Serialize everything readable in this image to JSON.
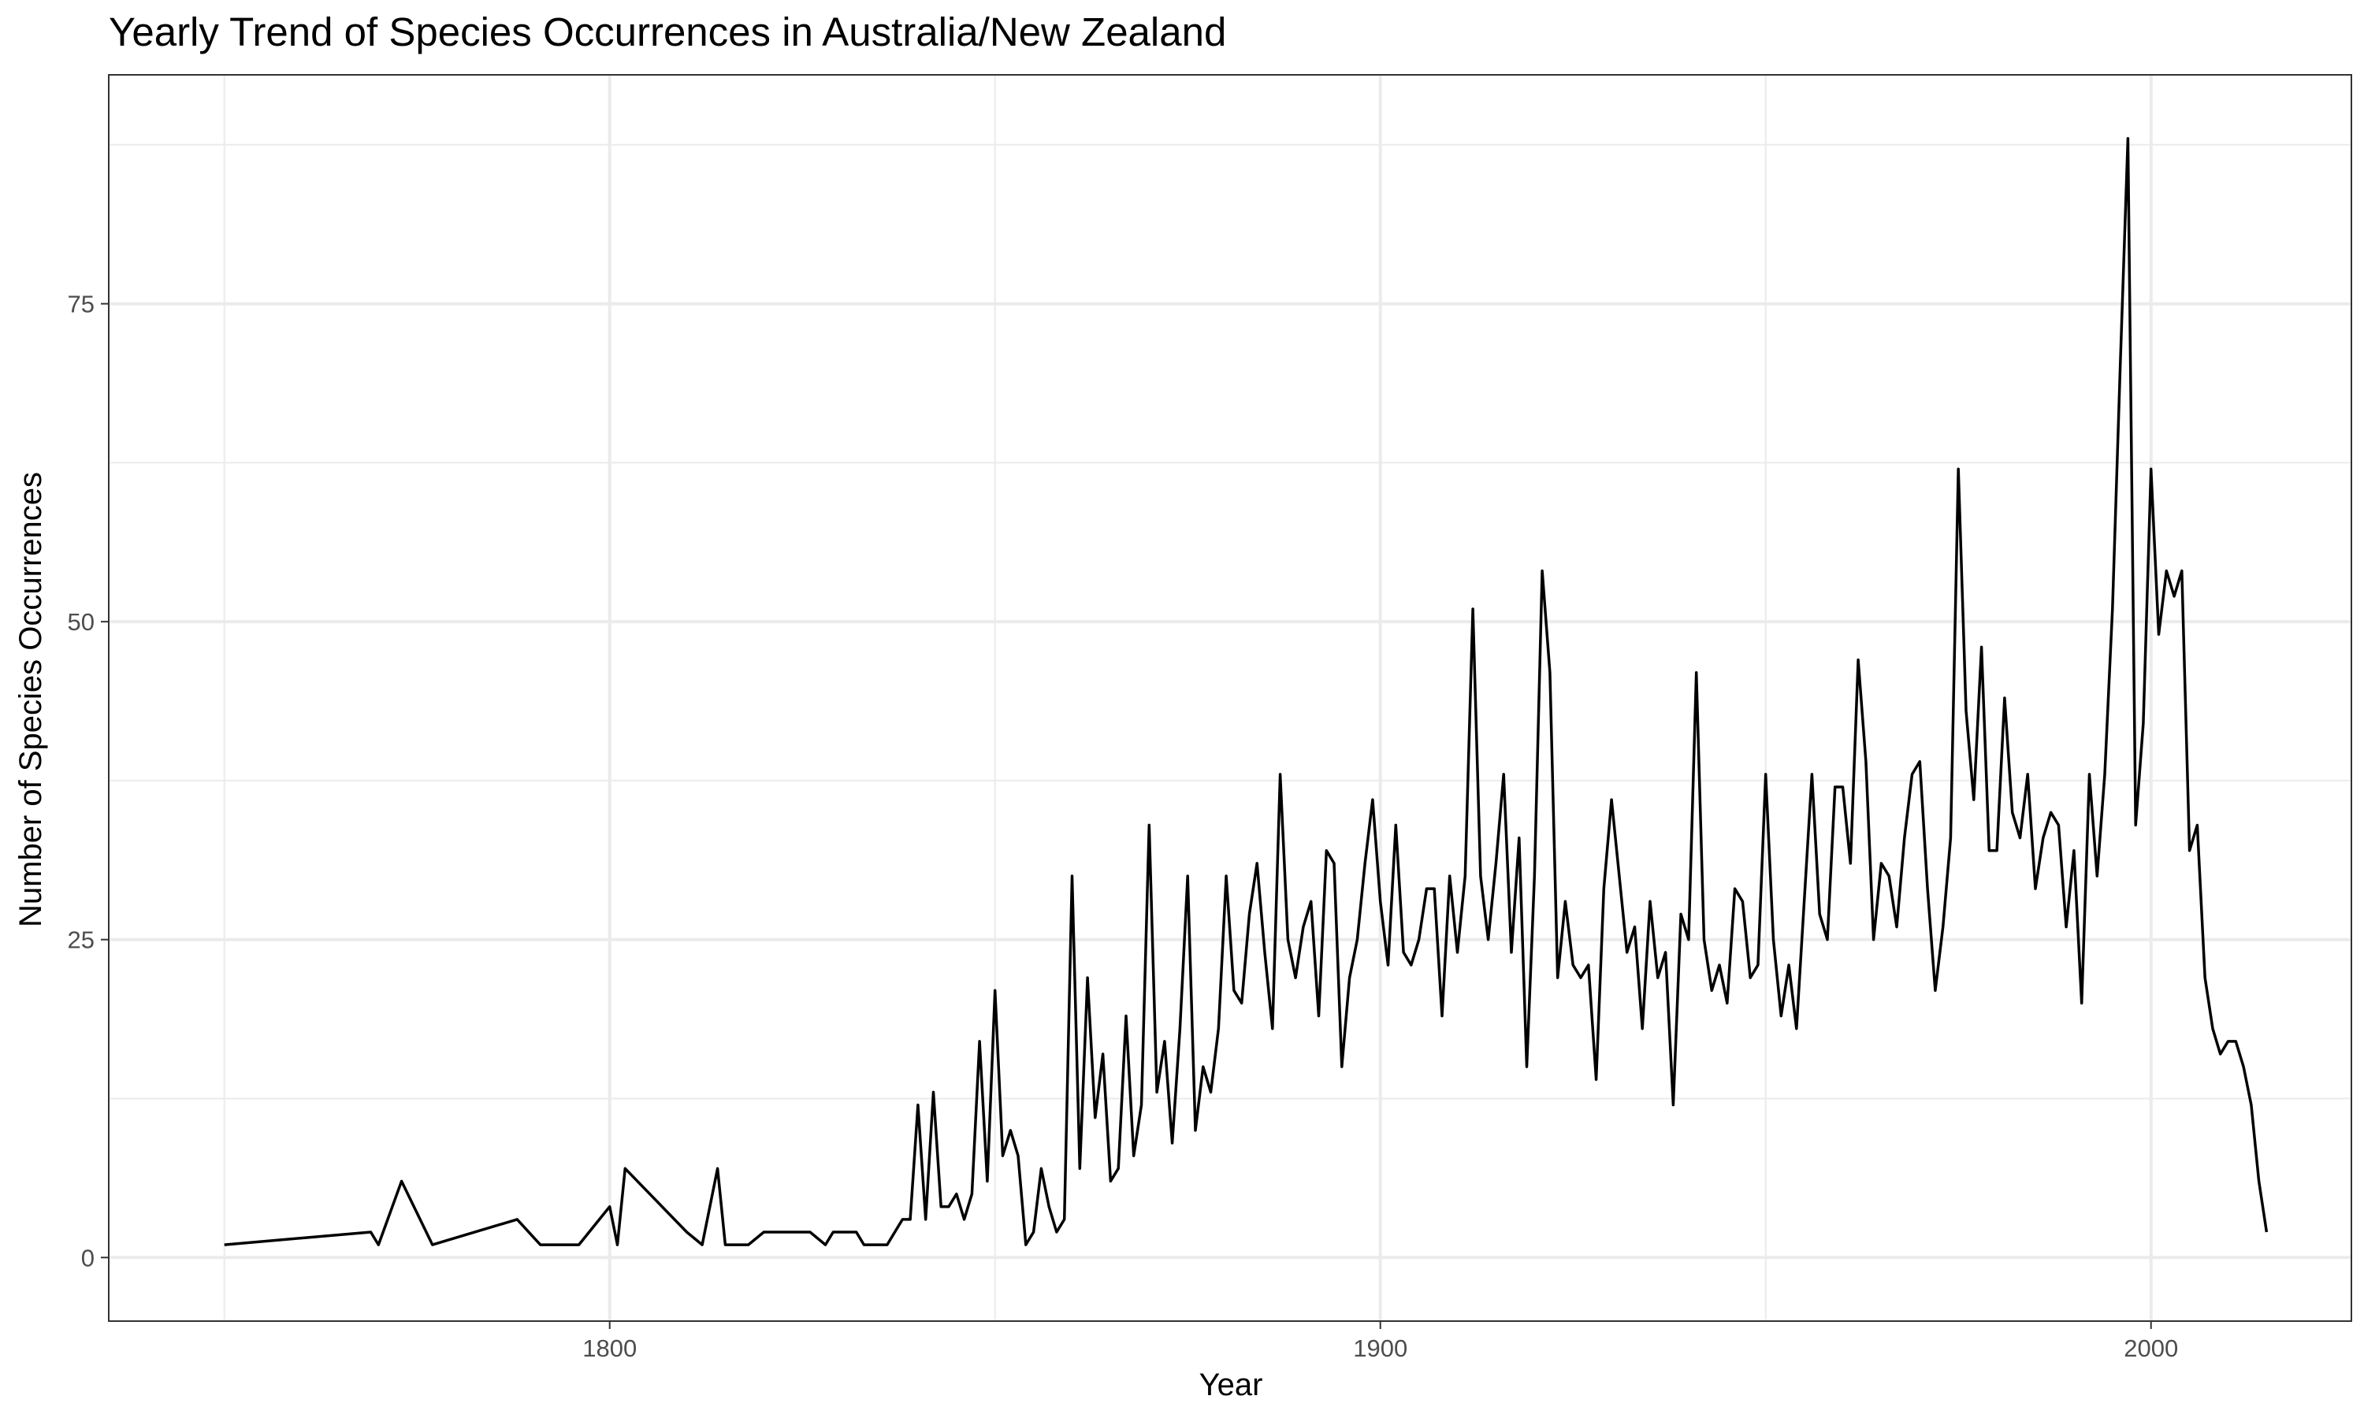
{
  "chart_data": {
    "type": "line",
    "title": "Yearly Trend of Species Occurrences in Australia/New Zealand",
    "xlabel": "Year",
    "ylabel": "Number of Species Occurrences",
    "xlim": [
      1735,
      2026
    ],
    "ylim": [
      -5,
      93
    ],
    "x_ticks": [
      1800,
      1900,
      2000
    ],
    "x_tick_labels": [
      "1800",
      "1900",
      "2000"
    ],
    "x_minor_ticks": [
      1750,
      1850,
      1950
    ],
    "y_ticks": [
      0,
      25,
      50,
      75
    ],
    "y_tick_labels": [
      "0",
      "25",
      "50",
      "75"
    ],
    "y_minor_ticks": [
      12.5,
      37.5,
      62.5,
      87.5
    ],
    "grid": true,
    "legend": "none",
    "colors": {
      "line": "#000000",
      "grid": "#ebebeb",
      "panel_border": "#333333",
      "tick_label": "#4d4d4d",
      "text": "#000000",
      "background": "#ffffff"
    },
    "series": [
      {
        "x": [
          1750,
          1769,
          1770,
          1773,
          1777,
          1788,
          1791,
          1796,
          1800,
          1801,
          1802,
          1810,
          1812,
          1814,
          1815,
          1818,
          1820,
          1826,
          1828,
          1829,
          1832,
          1833,
          1836,
          1838,
          1839,
          1840,
          1841,
          1842,
          1843,
          1844,
          1845,
          1846,
          1847,
          1848,
          1849,
          1850,
          1851,
          1852,
          1853,
          1854,
          1855,
          1856,
          1857,
          1858,
          1859,
          1860,
          1861,
          1862,
          1863,
          1864,
          1865,
          1866,
          1867,
          1868,
          1869,
          1870,
          1871,
          1872,
          1873,
          1874,
          1875,
          1876,
          1877,
          1878,
          1879,
          1880,
          1881,
          1882,
          1883,
          1884,
          1885,
          1886,
          1887,
          1888,
          1889,
          1890,
          1891,
          1892,
          1893,
          1894,
          1895,
          1896,
          1897,
          1898,
          1899,
          1900,
          1901,
          1902,
          1903,
          1904,
          1905,
          1906,
          1907,
          1908,
          1909,
          1910,
          1911,
          1912,
          1913,
          1914,
          1915,
          1916,
          1917,
          1918,
          1919,
          1920,
          1921,
          1922,
          1923,
          1924,
          1925,
          1926,
          1927,
          1928,
          1929,
          1930,
          1931,
          1932,
          1933,
          1934,
          1935,
          1936,
          1937,
          1938,
          1939,
          1940,
          1941,
          1942,
          1943,
          1944,
          1945,
          1946,
          1947,
          1948,
          1949,
          1950,
          1951,
          1952,
          1953,
          1954,
          1955,
          1956,
          1957,
          1958,
          1959,
          1960,
          1961,
          1962,
          1963,
          1964,
          1965,
          1966,
          1967,
          1968,
          1969,
          1970,
          1971,
          1972,
          1973,
          1974,
          1975,
          1976,
          1977,
          1978,
          1979,
          1980,
          1981,
          1982,
          1983,
          1984,
          1985,
          1986,
          1987,
          1988,
          1989,
          1990,
          1991,
          1992,
          1993,
          1994,
          1995,
          1996,
          1997,
          1998,
          1999,
          2000,
          2001,
          2002,
          2003,
          2004,
          2005,
          2006,
          2007,
          2008,
          2009,
          2010,
          2011,
          2012,
          2013,
          2014,
          2015
        ],
        "y": [
          1,
          2,
          1,
          6,
          1,
          3,
          1,
          1,
          4,
          1,
          7,
          2,
          1,
          7,
          1,
          1,
          2,
          2,
          1,
          2,
          2,
          1,
          1,
          3,
          3,
          12,
          3,
          13,
          4,
          4,
          5,
          3,
          5,
          17,
          6,
          21,
          8,
          10,
          8,
          1,
          2,
          7,
          4,
          2,
          3,
          30,
          7,
          22,
          11,
          16,
          6,
          7,
          19,
          8,
          12,
          34,
          13,
          17,
          9,
          18,
          30,
          10,
          15,
          13,
          18,
          30,
          21,
          20,
          27,
          31,
          24,
          18,
          38,
          25,
          22,
          26,
          28,
          19,
          32,
          31,
          15,
          22,
          25,
          31,
          36,
          28,
          23,
          34,
          24,
          23,
          25,
          29,
          29,
          19,
          30,
          24,
          30,
          51,
          30,
          25,
          31,
          38,
          24,
          33,
          15,
          30,
          54,
          46,
          22,
          28,
          23,
          22,
          23,
          14,
          29,
          36,
          30,
          24,
          26,
          18,
          28,
          22,
          24,
          12,
          27,
          25,
          46,
          25,
          21,
          23,
          20,
          29,
          28,
          22,
          23,
          38,
          25,
          19,
          23,
          18,
          28,
          38,
          27,
          25,
          37,
          37,
          31,
          47,
          39,
          25,
          31,
          30,
          26,
          33,
          38,
          39,
          29,
          21,
          26,
          33,
          62,
          43,
          36,
          48,
          32,
          32,
          44,
          35,
          33,
          38,
          29,
          33,
          35,
          34,
          26,
          32,
          20,
          38,
          30,
          38,
          51,
          70,
          88,
          34,
          42,
          62,
          49,
          54,
          52,
          54,
          32,
          34,
          22,
          18,
          16,
          17,
          17,
          15,
          12,
          6,
          2
        ]
      }
    ]
  }
}
